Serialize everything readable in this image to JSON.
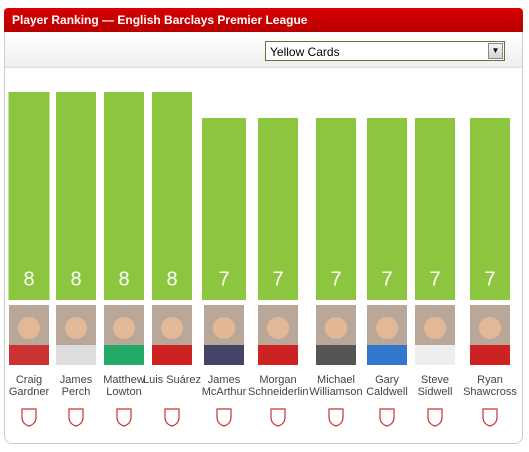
{
  "chart_data": {
    "type": "bar",
    "title": "Player Ranking — English Barclays Premier League",
    "metric": "Yellow Cards",
    "categories": [
      "Craig Gardner",
      "James Perch",
      "Matthew Lowton",
      "Luis Suárez",
      "James McArthur",
      "Morgan Schneiderlin",
      "Michael Williamson",
      "Gary Caldwell",
      "Steve Sidwell",
      "Ryan Shawcross"
    ],
    "values": [
      8,
      8,
      8,
      8,
      7,
      7,
      7,
      7,
      7,
      7
    ],
    "color": "#8cc63f",
    "ylim": [
      0,
      8
    ]
  }
}
